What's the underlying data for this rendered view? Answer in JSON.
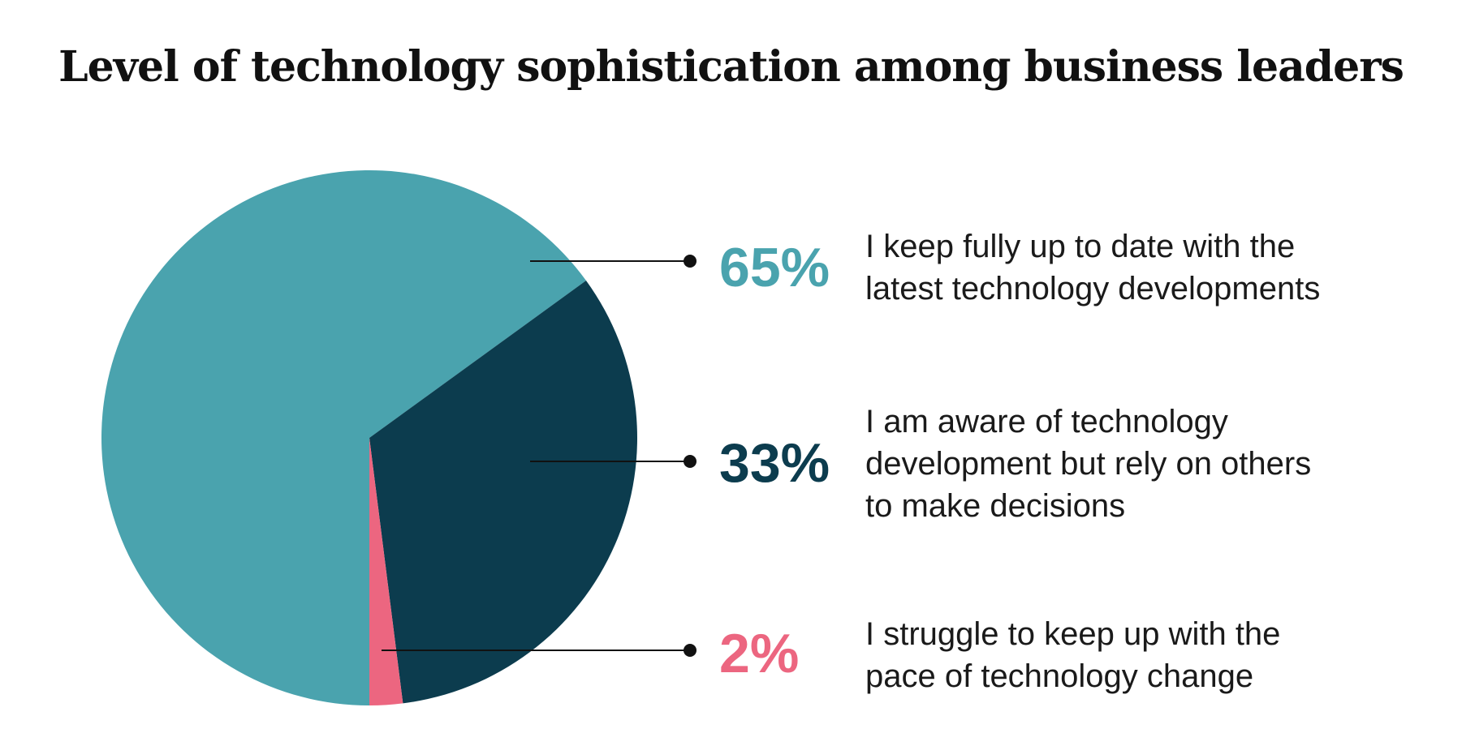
{
  "chart_data": {
    "type": "pie",
    "title": "Level of technology sophistication among business leaders",
    "slices": [
      {
        "value": 65,
        "value_label": "65%",
        "lines": [
          "I keep fully up to date with the",
          "latest technology developments"
        ],
        "color": "#4aa3ae"
      },
      {
        "value": 33,
        "value_label": "33%",
        "lines": [
          "I am aware of technology",
          "development but rely on others",
          "to make decisions"
        ],
        "color": "#0c3c4e"
      },
      {
        "value": 2,
        "value_label": "2%",
        "lines": [
          "I struggle to keep up with the",
          "pace of technology change"
        ],
        "color": "#ec6680"
      }
    ],
    "start": "bottom",
    "direction": "clockwise",
    "legend": "right",
    "leader_color": "#111111"
  }
}
